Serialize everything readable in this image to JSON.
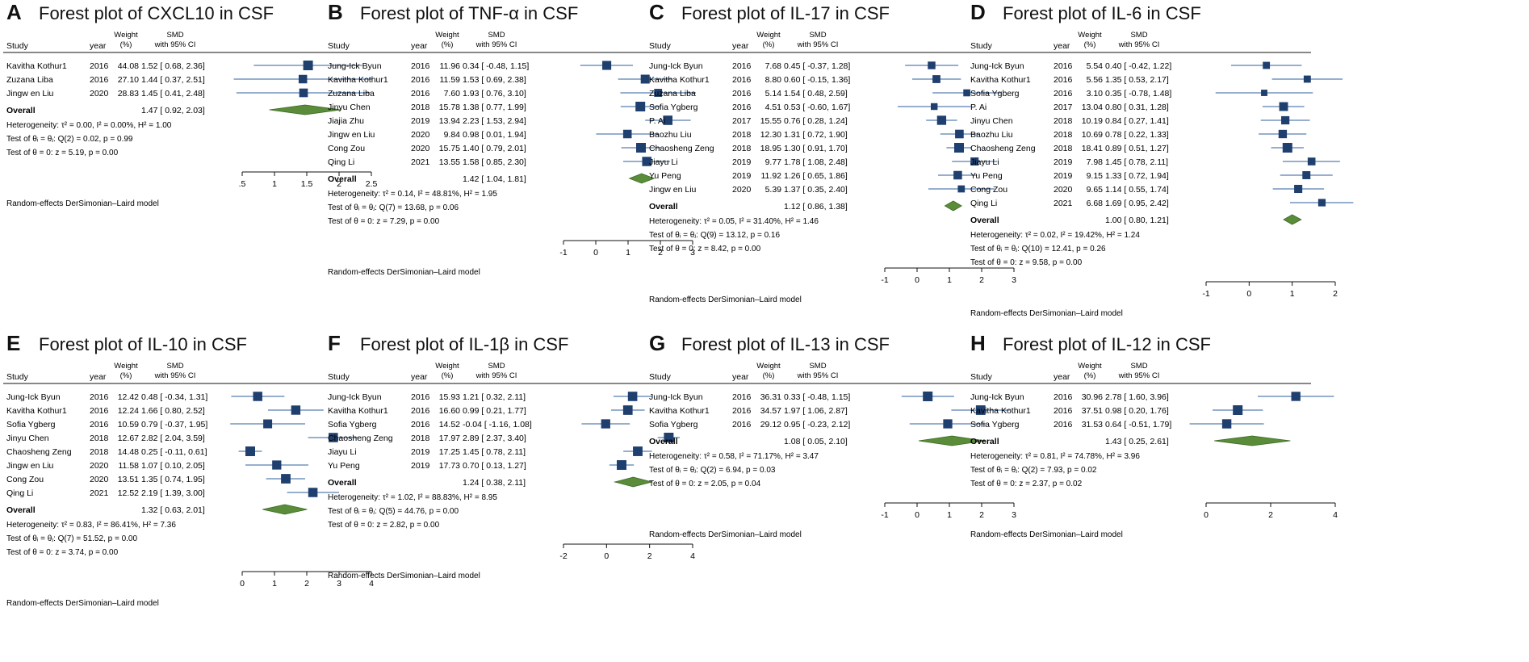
{
  "colors": {
    "marker": "#1f3f6e",
    "ci": "#2f5f9e",
    "diamond": "#5a8c3a",
    "diamondEdge": "#3b6a25",
    "axis": "#111111"
  },
  "headers": {
    "study": "Study",
    "year": "year",
    "weight_top": "Weight",
    "weight_bot": "(%)",
    "smd_top": "SMD",
    "smd_bot": "with 95% CI"
  },
  "overall_label": "Overall",
  "model_label": "Random-effects DerSimonian–Laird model",
  "chart_data": [
    {
      "type": "forest",
      "letter": "A",
      "title": "Forest plot of CXCL10 in CSF",
      "xlim": [
        0.5,
        2.5
      ],
      "ticks": [
        0.5,
        1,
        1.5,
        2,
        2.5
      ],
      "tick_labels": [
        ".5",
        "1",
        "1.5",
        "2",
        "2.5"
      ],
      "studies": [
        {
          "name": "Kavitha Kothur1",
          "year": "2016",
          "weight": "44.08",
          "smd": 1.52,
          "lo": 0.68,
          "hi": 2.36,
          "ci_text": "1.52 [ 0.68, 2.36]"
        },
        {
          "name": "Zuzana Liba",
          "year": "2016",
          "weight": "27.10",
          "smd": 1.44,
          "lo": 0.37,
          "hi": 2.51,
          "ci_text": "1.44 [ 0.37, 2.51]"
        },
        {
          "name": "Jingw en Liu",
          "year": "2020",
          "weight": "28.83",
          "smd": 1.45,
          "lo": 0.41,
          "hi": 2.48,
          "ci_text": "1.45 [ 0.41, 2.48]"
        }
      ],
      "overall": {
        "smd": 1.47,
        "lo": 0.92,
        "hi": 2.03,
        "ci_text": "1.47 [ 0.92, 2.03]"
      },
      "stats": [
        "Heterogeneity: τ² = 0.00, I² = 0.00%, H² = 1.00",
        "Test of θᵢ = θⱼ: Q(2) = 0.02, p = 0.99",
        "Test of θ = 0: z = 5.19, p = 0.00"
      ]
    },
    {
      "type": "forest",
      "letter": "B",
      "title": "Forest plot of TNF-α in CSF",
      "xlim": [
        -1,
        3
      ],
      "ticks": [
        -1,
        0,
        1,
        2,
        3
      ],
      "tick_labels": [
        "-1",
        "0",
        "1",
        "2",
        "3"
      ],
      "studies": [
        {
          "name": "Jung-Ick Byun",
          "year": "2016",
          "weight": "11.96",
          "smd": 0.34,
          "lo": -0.48,
          "hi": 1.15,
          "ci_text": "0.34 [ -0.48, 1.15]"
        },
        {
          "name": "Kavitha Kothur1",
          "year": "2016",
          "weight": "11.59",
          "smd": 1.53,
          "lo": 0.69,
          "hi": 2.38,
          "ci_text": "1.53 [ 0.69, 2.38]"
        },
        {
          "name": "Zuzana Liba",
          "year": "2016",
          "weight": "7.60",
          "smd": 1.93,
          "lo": 0.76,
          "hi": 3.1,
          "ci_text": "1.93 [ 0.76, 3.10]"
        },
        {
          "name": "Jinyu Chen",
          "year": "2018",
          "weight": "15.78",
          "smd": 1.38,
          "lo": 0.77,
          "hi": 1.99,
          "ci_text": "1.38 [ 0.77, 1.99]"
        },
        {
          "name": "Jiajia Zhu",
          "year": "2019",
          "weight": "13.94",
          "smd": 2.23,
          "lo": 1.53,
          "hi": 2.94,
          "ci_text": "2.23 [ 1.53, 2.94]"
        },
        {
          "name": "Jingw en Liu",
          "year": "2020",
          "weight": "9.84",
          "smd": 0.98,
          "lo": 0.01,
          "hi": 1.94,
          "ci_text": "0.98 [ 0.01, 1.94]"
        },
        {
          "name": "Cong Zou",
          "year": "2020",
          "weight": "15.75",
          "smd": 1.4,
          "lo": 0.79,
          "hi": 2.01,
          "ci_text": "1.40 [ 0.79, 2.01]"
        },
        {
          "name": "Qing Li",
          "year": "2021",
          "weight": "13.55",
          "smd": 1.58,
          "lo": 0.85,
          "hi": 2.3,
          "ci_text": "1.58 [ 0.85, 2.30]"
        }
      ],
      "overall": {
        "smd": 1.42,
        "lo": 1.04,
        "hi": 1.81,
        "ci_text": "1.42 [ 1.04, 1.81]"
      },
      "stats": [
        "Heterogeneity: τ² = 0.14, I² = 48.81%, H² = 1.95",
        "Test of θᵢ = θⱼ: Q(7) = 13.68, p = 0.06",
        "Test of θ = 0: z = 7.29, p = 0.00"
      ]
    },
    {
      "type": "forest",
      "letter": "C",
      "title": "Forest plot of IL-17 in CSF",
      "xlim": [
        -1,
        3
      ],
      "ticks": [
        -1,
        0,
        1,
        2,
        3
      ],
      "tick_labels": [
        "-1",
        "0",
        "1",
        "2",
        "3"
      ],
      "studies": [
        {
          "name": "Jung-Ick Byun",
          "year": "2016",
          "weight": "7.68",
          "smd": 0.45,
          "lo": -0.37,
          "hi": 1.28,
          "ci_text": "0.45 [ -0.37, 1.28]"
        },
        {
          "name": "Kavitha Kothur1",
          "year": "2016",
          "weight": "8.80",
          "smd": 0.6,
          "lo": -0.15,
          "hi": 1.36,
          "ci_text": "0.60 [ -0.15, 1.36]"
        },
        {
          "name": "Zuzana Liba",
          "year": "2016",
          "weight": "5.14",
          "smd": 1.54,
          "lo": 0.48,
          "hi": 2.59,
          "ci_text": "1.54 [ 0.48, 2.59]"
        },
        {
          "name": "Sofia Ygberg",
          "year": "2016",
          "weight": "4.51",
          "smd": 0.53,
          "lo": -0.6,
          "hi": 1.67,
          "ci_text": "0.53 [ -0.60, 1.67]"
        },
        {
          "name": "P. Ai",
          "year": "2017",
          "weight": "15.55",
          "smd": 0.76,
          "lo": 0.28,
          "hi": 1.24,
          "ci_text": "0.76 [ 0.28, 1.24]"
        },
        {
          "name": "Baozhu Liu",
          "year": "2018",
          "weight": "12.30",
          "smd": 1.31,
          "lo": 0.72,
          "hi": 1.9,
          "ci_text": "1.31 [ 0.72, 1.90]"
        },
        {
          "name": "Chaosheng Zeng",
          "year": "2018",
          "weight": "18.95",
          "smd": 1.3,
          "lo": 0.91,
          "hi": 1.7,
          "ci_text": "1.30 [ 0.91, 1.70]"
        },
        {
          "name": "Jiayu Li",
          "year": "2019",
          "weight": "9.77",
          "smd": 1.78,
          "lo": 1.08,
          "hi": 2.48,
          "ci_text": "1.78 [ 1.08, 2.48]"
        },
        {
          "name": "Yu Peng",
          "year": "2019",
          "weight": "11.92",
          "smd": 1.26,
          "lo": 0.65,
          "hi": 1.86,
          "ci_text": "1.26 [ 0.65, 1.86]"
        },
        {
          "name": "Jingw en Liu",
          "year": "2020",
          "weight": "5.39",
          "smd": 1.37,
          "lo": 0.35,
          "hi": 2.4,
          "ci_text": "1.37 [ 0.35, 2.40]"
        }
      ],
      "overall": {
        "smd": 1.12,
        "lo": 0.86,
        "hi": 1.38,
        "ci_text": "1.12 [ 0.86, 1.38]"
      },
      "stats": [
        "Heterogeneity: τ² = 0.05, I² = 31.40%, H² = 1.46",
        "Test of θᵢ = θⱼ: Q(9) = 13.12, p = 0.16",
        "Test of θ = 0: z = 8.42, p = 0.00"
      ]
    },
    {
      "type": "forest",
      "letter": "D",
      "title": "Forest plot of IL-6 in CSF",
      "xlim": [
        -1,
        2
      ],
      "ticks": [
        -1,
        0,
        1,
        2
      ],
      "tick_labels": [
        "-1",
        "0",
        "1",
        "2"
      ],
      "studies": [
        {
          "name": "Jung-Ick Byun",
          "year": "2016",
          "weight": "5.54",
          "smd": 0.4,
          "lo": -0.42,
          "hi": 1.22,
          "ci_text": "0.40 [ -0.42, 1.22]"
        },
        {
          "name": "Kavitha Kothur1",
          "year": "2016",
          "weight": "5.56",
          "smd": 1.35,
          "lo": 0.53,
          "hi": 2.17,
          "ci_text": "1.35 [ 0.53, 2.17]"
        },
        {
          "name": "Sofia Ygberg",
          "year": "2016",
          "weight": "3.10",
          "smd": 0.35,
          "lo": -0.78,
          "hi": 1.48,
          "ci_text": "0.35 [ -0.78, 1.48]"
        },
        {
          "name": "P. Ai",
          "year": "2017",
          "weight": "13.04",
          "smd": 0.8,
          "lo": 0.31,
          "hi": 1.28,
          "ci_text": "0.80 [ 0.31, 1.28]"
        },
        {
          "name": "Jinyu Chen",
          "year": "2018",
          "weight": "10.19",
          "smd": 0.84,
          "lo": 0.27,
          "hi": 1.41,
          "ci_text": "0.84 [ 0.27, 1.41]"
        },
        {
          "name": "Baozhu Liu",
          "year": "2018",
          "weight": "10.69",
          "smd": 0.78,
          "lo": 0.22,
          "hi": 1.33,
          "ci_text": "0.78 [ 0.22, 1.33]"
        },
        {
          "name": "Chaosheng Zeng",
          "year": "2018",
          "weight": "18.41",
          "smd": 0.89,
          "lo": 0.51,
          "hi": 1.27,
          "ci_text": "0.89 [ 0.51, 1.27]"
        },
        {
          "name": "Jiayu Li",
          "year": "2019",
          "weight": "7.98",
          "smd": 1.45,
          "lo": 0.78,
          "hi": 2.11,
          "ci_text": "1.45 [ 0.78, 2.11]"
        },
        {
          "name": "Yu Peng",
          "year": "2019",
          "weight": "9.15",
          "smd": 1.33,
          "lo": 0.72,
          "hi": 1.94,
          "ci_text": "1.33 [ 0.72, 1.94]"
        },
        {
          "name": "Cong Zou",
          "year": "2020",
          "weight": "9.65",
          "smd": 1.14,
          "lo": 0.55,
          "hi": 1.74,
          "ci_text": "1.14 [ 0.55, 1.74]"
        },
        {
          "name": "Qing Li",
          "year": "2021",
          "weight": "6.68",
          "smd": 1.69,
          "lo": 0.95,
          "hi": 2.42,
          "ci_text": "1.69 [ 0.95, 2.42]"
        }
      ],
      "overall": {
        "smd": 1.0,
        "lo": 0.8,
        "hi": 1.21,
        "ci_text": "1.00 [ 0.80, 1.21]"
      },
      "stats": [
        "Heterogeneity: τ² = 0.02, I² = 19.42%, H² = 1.24",
        "Test of θᵢ = θⱼ: Q(10) = 12.41, p = 0.26",
        "Test of θ = 0: z = 9.58, p = 0.00"
      ]
    },
    {
      "type": "forest",
      "letter": "E",
      "title": "Forest plot of IL-10 in CSF",
      "xlim": [
        0,
        4
      ],
      "ticks": [
        0,
        1,
        2,
        3,
        4
      ],
      "tick_labels": [
        "0",
        "1",
        "2",
        "3",
        "4"
      ],
      "studies": [
        {
          "name": "Jung-Ick Byun",
          "year": "2016",
          "weight": "12.42",
          "smd": 0.48,
          "lo": -0.34,
          "hi": 1.31,
          "ci_text": "0.48 [ -0.34, 1.31]"
        },
        {
          "name": "Kavitha Kothur1",
          "year": "2016",
          "weight": "12.24",
          "smd": 1.66,
          "lo": 0.8,
          "hi": 2.52,
          "ci_text": "1.66 [ 0.80, 2.52]"
        },
        {
          "name": "Sofia Ygberg",
          "year": "2016",
          "weight": "10.59",
          "smd": 0.79,
          "lo": -0.37,
          "hi": 1.95,
          "ci_text": "0.79 [ -0.37, 1.95]"
        },
        {
          "name": "Jinyu Chen",
          "year": "2018",
          "weight": "12.67",
          "smd": 2.82,
          "lo": 2.04,
          "hi": 3.59,
          "ci_text": "2.82 [ 2.04, 3.59]"
        },
        {
          "name": "Chaosheng Zeng",
          "year": "2018",
          "weight": "14.48",
          "smd": 0.25,
          "lo": -0.11,
          "hi": 0.61,
          "ci_text": "0.25 [ -0.11, 0.61]"
        },
        {
          "name": "Jingw en Liu",
          "year": "2020",
          "weight": "11.58",
          "smd": 1.07,
          "lo": 0.1,
          "hi": 2.05,
          "ci_text": "1.07 [ 0.10, 2.05]"
        },
        {
          "name": "Cong Zou",
          "year": "2020",
          "weight": "13.51",
          "smd": 1.35,
          "lo": 0.74,
          "hi": 1.95,
          "ci_text": "1.35 [ 0.74, 1.95]"
        },
        {
          "name": "Qing Li",
          "year": "2021",
          "weight": "12.52",
          "smd": 2.19,
          "lo": 1.39,
          "hi": 3.0,
          "ci_text": "2.19 [ 1.39, 3.00]"
        }
      ],
      "overall": {
        "smd": 1.32,
        "lo": 0.63,
        "hi": 2.01,
        "ci_text": "1.32 [ 0.63, 2.01]"
      },
      "stats": [
        "Heterogeneity: τ² = 0.83, I² = 86.41%, H² = 7.36",
        "Test of θᵢ = θⱼ: Q(7) = 51.52, p = 0.00",
        "Test of θ = 0: z = 3.74, p = 0.00"
      ]
    },
    {
      "type": "forest",
      "letter": "F",
      "title": "Forest plot of IL-1β in CSF",
      "xlim": [
        -2,
        4
      ],
      "ticks": [
        -2,
        0,
        2,
        4
      ],
      "tick_labels": [
        "-2",
        "0",
        "2",
        "4"
      ],
      "studies": [
        {
          "name": "Jung-Ick Byun",
          "year": "2016",
          "weight": "15.93",
          "smd": 1.21,
          "lo": 0.32,
          "hi": 2.11,
          "ci_text": "1.21 [ 0.32, 2.11]"
        },
        {
          "name": "Kavitha Kothur1",
          "year": "2016",
          "weight": "16.60",
          "smd": 0.99,
          "lo": 0.21,
          "hi": 1.77,
          "ci_text": "0.99 [ 0.21, 1.77]"
        },
        {
          "name": "Sofia Ygberg",
          "year": "2016",
          "weight": "14.52",
          "smd": -0.04,
          "lo": -1.16,
          "hi": 1.08,
          "ci_text": "-0.04 [ -1.16, 1.08]"
        },
        {
          "name": "Chaosheng Zeng",
          "year": "2018",
          "weight": "17.97",
          "smd": 2.89,
          "lo": 2.37,
          "hi": 3.4,
          "ci_text": "2.89 [ 2.37, 3.40]"
        },
        {
          "name": "Jiayu Li",
          "year": "2019",
          "weight": "17.25",
          "smd": 1.45,
          "lo": 0.78,
          "hi": 2.11,
          "ci_text": "1.45 [ 0.78, 2.11]"
        },
        {
          "name": "Yu Peng",
          "year": "2019",
          "weight": "17.73",
          "smd": 0.7,
          "lo": 0.13,
          "hi": 1.27,
          "ci_text": "0.70 [ 0.13, 1.27]"
        }
      ],
      "overall": {
        "smd": 1.24,
        "lo": 0.38,
        "hi": 2.11,
        "ci_text": "1.24 [ 0.38, 2.11]"
      },
      "stats": [
        "Heterogeneity: τ² = 1.02, I² = 88.83%, H² = 8.95",
        "Test of θᵢ = θⱼ: Q(5) = 44.76, p = 0.00",
        "Test of θ = 0: z = 2.82, p = 0.00"
      ]
    },
    {
      "type": "forest",
      "letter": "G",
      "title": "Forest plot of IL-13 in CSF",
      "xlim": [
        -1,
        3
      ],
      "ticks": [
        -1,
        0,
        1,
        2,
        3
      ],
      "tick_labels": [
        "-1",
        "0",
        "1",
        "2",
        "3"
      ],
      "studies": [
        {
          "name": "Jung-Ick Byun",
          "year": "2016",
          "weight": "36.31",
          "smd": 0.33,
          "lo": -0.48,
          "hi": 1.15,
          "ci_text": "0.33 [ -0.48, 1.15]"
        },
        {
          "name": "Kavitha Kothur1",
          "year": "2016",
          "weight": "34.57",
          "smd": 1.97,
          "lo": 1.06,
          "hi": 2.87,
          "ci_text": "1.97 [ 1.06, 2.87]"
        },
        {
          "name": "Sofia Ygberg",
          "year": "2016",
          "weight": "29.12",
          "smd": 0.95,
          "lo": -0.23,
          "hi": 2.12,
          "ci_text": "0.95 [ -0.23, 2.12]"
        }
      ],
      "overall": {
        "smd": 1.08,
        "lo": 0.05,
        "hi": 2.1,
        "ci_text": "1.08 [ 0.05, 2.10]"
      },
      "stats": [
        "Heterogeneity: τ² = 0.58, I² = 71.17%, H² = 3.47",
        "Test of θᵢ = θⱼ: Q(2) = 6.94, p = 0.03",
        "Test of θ = 0: z = 2.05, p = 0.04"
      ]
    },
    {
      "type": "forest",
      "letter": "H",
      "title": "Forest plot of IL-12 in CSF",
      "xlim": [
        0,
        4
      ],
      "ticks": [
        0,
        2,
        4
      ],
      "tick_labels": [
        "0",
        "2",
        "4"
      ],
      "studies": [
        {
          "name": "Jung-Ick Byun",
          "year": "2016",
          "weight": "30.96",
          "smd": 2.78,
          "lo": 1.6,
          "hi": 3.96,
          "ci_text": "2.78 [ 1.60, 3.96]"
        },
        {
          "name": "Kavitha Kothur1",
          "year": "2016",
          "weight": "37.51",
          "smd": 0.98,
          "lo": 0.2,
          "hi": 1.76,
          "ci_text": "0.98 [ 0.20, 1.76]"
        },
        {
          "name": "Sofia Ygberg",
          "year": "2016",
          "weight": "31.53",
          "smd": 0.64,
          "lo": -0.51,
          "hi": 1.79,
          "ci_text": "0.64 [ -0.51, 1.79]"
        }
      ],
      "overall": {
        "smd": 1.43,
        "lo": 0.25,
        "hi": 2.61,
        "ci_text": "1.43 [ 0.25, 2.61]"
      },
      "stats": [
        "Heterogeneity: τ² = 0.81, I² = 74.78%, H² = 3.96",
        "Test of θᵢ = θⱼ: Q(2) = 7.93, p = 0.02",
        "Test of θ = 0: z = 2.37, p = 0.02"
      ]
    }
  ]
}
